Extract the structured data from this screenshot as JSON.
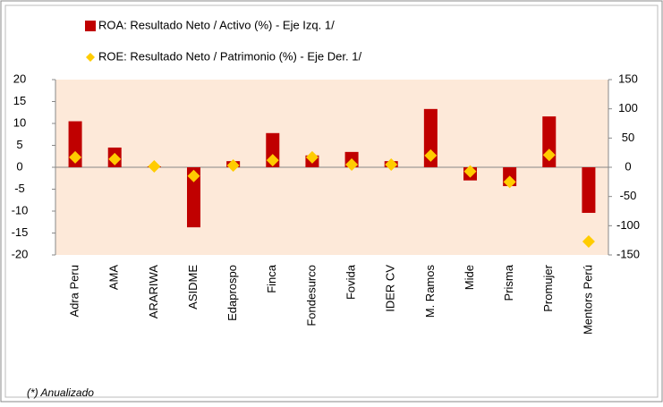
{
  "chart_data": {
    "type": "bar",
    "categories": [
      "Adra Peru",
      "AMA",
      "ARARIWA",
      "ASIDME",
      "Edaprospo",
      "Finca",
      "Fondesurco",
      "Fovida",
      "IDER CV",
      "M. Ramos",
      "Mide",
      "Prisma",
      "Promujer",
      "Mentors Perú"
    ],
    "series": [
      {
        "name": "ROA: Resultado Neto / Activo (%) - Eje Izq.  1/",
        "color": "#c00000",
        "values": [
          10.5,
          4.5,
          0.2,
          -13.7,
          1.4,
          7.8,
          2.7,
          3.5,
          1.4,
          13.3,
          -3,
          -4.3,
          11.6,
          -10.4
        ]
      },
      {
        "name": "ROE: Resultado Neto / Patrimonio (%) - Eje Der.  1/",
        "color": "#ffcc00",
        "axis": "y2",
        "values": [
          17,
          14,
          1.5,
          -15,
          3,
          12,
          17,
          4.5,
          4.5,
          20,
          -7,
          -25,
          21,
          -127
        ]
      }
    ],
    "ylim": [
      -20,
      20
    ],
    "yticks": [
      -20,
      -15,
      -10,
      -5,
      0,
      5,
      10,
      15,
      20
    ],
    "y2lim": [
      -150,
      150
    ],
    "y2ticks": [
      -150,
      -100,
      -50,
      0,
      50,
      100,
      150
    ],
    "plot_background": "#fde9d9",
    "note": "(*) Anualizado"
  }
}
